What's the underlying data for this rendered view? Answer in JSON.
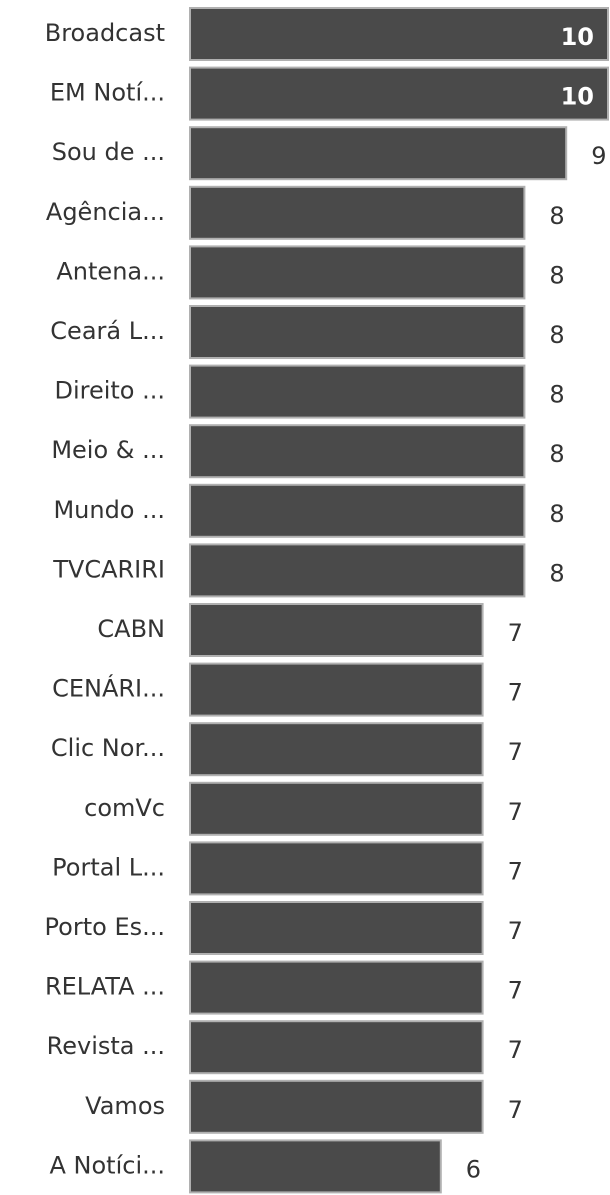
{
  "chart_data": {
    "type": "bar",
    "orientation": "horizontal",
    "categories": [
      "Broadcast",
      "EM Notí...",
      "Sou de ...",
      "Agência...",
      "Antena...",
      "Ceará L...",
      "Direito ...",
      "Meio & ...",
      "Mundo ...",
      "TVCARIRI",
      "CABN",
      "CENÁRI...",
      "Clic Nor...",
      "comVc",
      "Portal L...",
      "Porto Es...",
      "RELATA ...",
      "Revista ...",
      "Vamos",
      "A Notíci..."
    ],
    "values": [
      10,
      10,
      9,
      8,
      8,
      8,
      8,
      8,
      8,
      8,
      7,
      7,
      7,
      7,
      7,
      7,
      7,
      7,
      7,
      6
    ],
    "color": "#4a4a4a"
  }
}
